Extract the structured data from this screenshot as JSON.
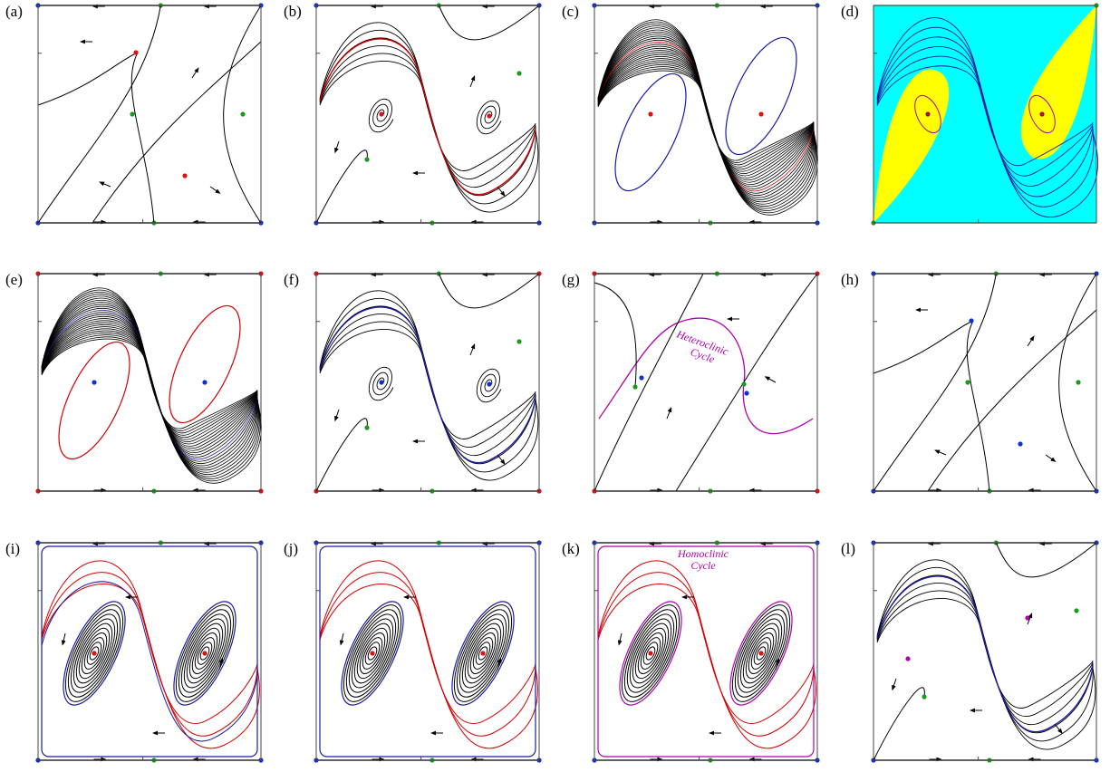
{
  "figure": {
    "panels": [
      {
        "label": "(a)",
        "kind": "saddles",
        "fill": false
      },
      {
        "label": "(b)",
        "kind": "spirals-red",
        "fill": false
      },
      {
        "label": "(c)",
        "kind": "dense-red-blue",
        "fill": false
      },
      {
        "label": "(d)",
        "kind": "filled",
        "fill": true
      },
      {
        "label": "(e)",
        "kind": "dense-blue-red",
        "fill": false
      },
      {
        "label": "(f)",
        "kind": "spirals-blue",
        "fill": false
      },
      {
        "label": "(g)",
        "kind": "heteroclinic",
        "fill": false,
        "annotation": [
          "Heteroclinic",
          "Cycle"
        ]
      },
      {
        "label": "(h)",
        "kind": "saddles2",
        "fill": false
      },
      {
        "label": "(i)",
        "kind": "centers-red-blue",
        "fill": false
      },
      {
        "label": "(j)",
        "kind": "centers-red",
        "fill": false
      },
      {
        "label": "(k)",
        "kind": "homoclinic",
        "fill": false,
        "annotation": [
          "Homoclinic",
          "Cycle"
        ]
      },
      {
        "label": "(l)",
        "kind": "sparse-blue",
        "fill": false
      }
    ],
    "colors": {
      "trajectory": "#000000",
      "red": "#d40000",
      "blue": "#1a1aa6",
      "magenta": "#b000b0",
      "green_point": "#1a9a1a",
      "blue_point": "#1030d0",
      "red_point": "#e01010",
      "cyan_fill": "#00ffff",
      "yellow_fill": "#ffff00"
    }
  }
}
